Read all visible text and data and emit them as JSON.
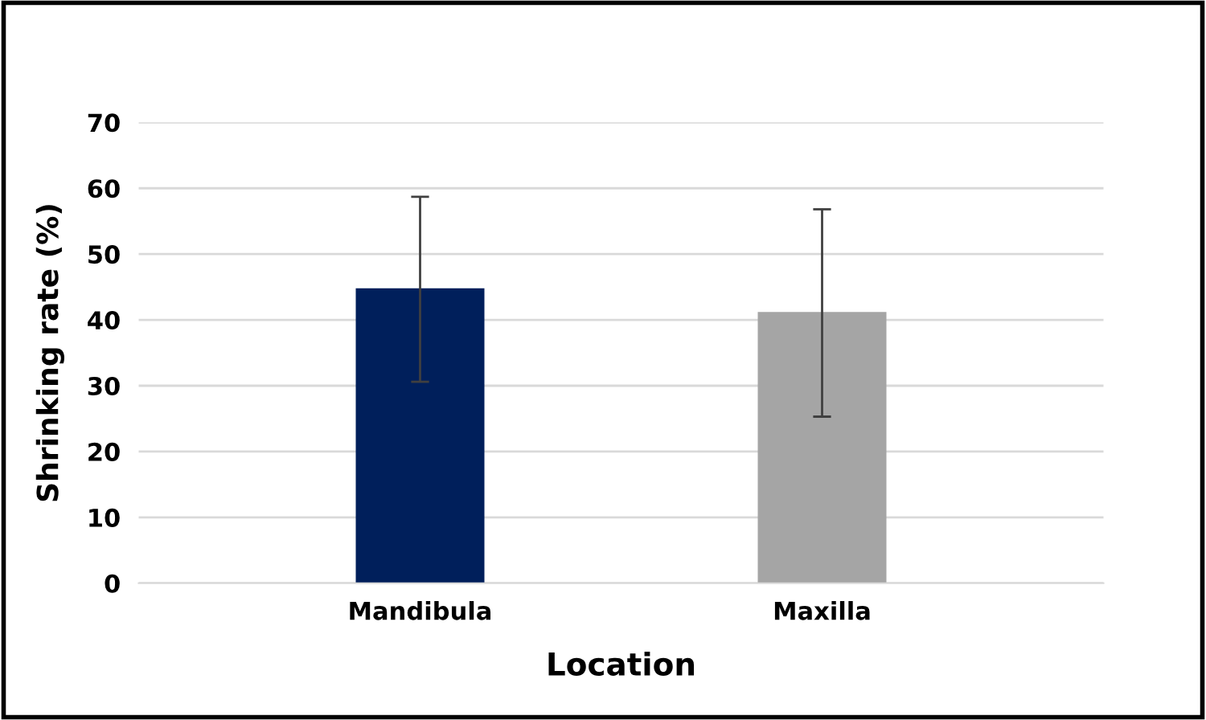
{
  "chart_data": {
    "type": "bar",
    "xlabel": "Location",
    "ylabel": "Shrinking rate (%)",
    "categories": [
      "Mandibula",
      "Maxilla"
    ],
    "values": [
      44.8,
      41.2
    ],
    "colors": [
      "#001f5b",
      "#a5a5a5"
    ],
    "errors": [
      [
        30.6,
        58.7
      ],
      [
        25.3,
        56.8
      ]
    ],
    "ylim": [
      0,
      70
    ],
    "yticks": [
      0,
      10,
      20,
      30,
      40,
      50,
      60,
      70
    ],
    "grid": "y"
  }
}
